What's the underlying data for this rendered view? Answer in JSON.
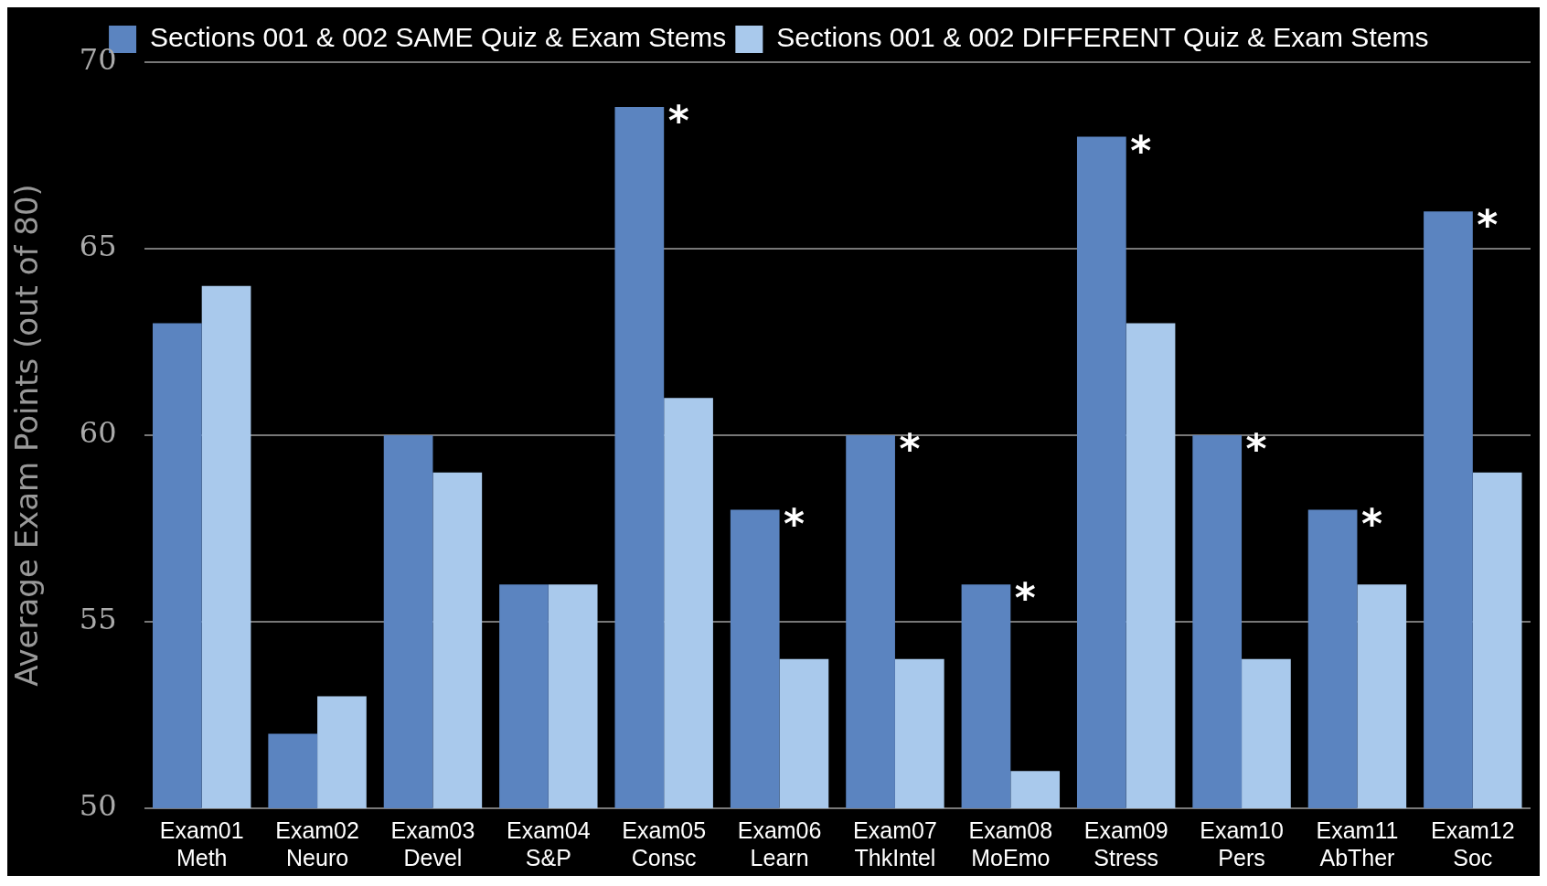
{
  "chart_data": {
    "type": "bar",
    "ylabel": "Average Exam Points (out of 80)",
    "categories": [
      "Exam01\nMeth",
      "Exam02\nNeuro",
      "Exam03\nDevel",
      "Exam04\nS&P",
      "Exam05\nConsc",
      "Exam06\nLearn",
      "Exam07\nThkIntel",
      "Exam08\nMoEmo",
      "Exam09\nStress",
      "Exam10\nPers",
      "Exam11\nAbTher",
      "Exam12\nSoc"
    ],
    "series": [
      {
        "name": "Sections 001 & 002 SAME Quiz & Exam Stems",
        "color": "#5b84c0",
        "values": [
          63,
          52,
          60,
          56,
          68.8,
          58,
          60,
          56,
          68,
          60,
          58,
          66
        ]
      },
      {
        "name": "Sections 001 & 002 DIFFERENT Quiz & Exam Stems",
        "color": "#a9c9ec",
        "values": [
          64,
          53,
          59,
          56,
          61,
          54,
          54,
          51,
          63,
          54,
          56,
          59
        ]
      }
    ],
    "ylim": [
      50,
      70
    ],
    "yticks": [
      50,
      55,
      60,
      65,
      70
    ],
    "grid": "y",
    "legend": "top",
    "annotations": [
      {
        "text": "*",
        "x": "Exam05\nConsc",
        "y": 68.8
      },
      {
        "text": "*",
        "x": "Exam06\nLearn",
        "y": 58
      },
      {
        "text": "*",
        "x": "Exam07\nThkIntel",
        "y": 60
      },
      {
        "text": "*",
        "x": "Exam08\nMoEmo",
        "y": 56
      },
      {
        "text": "*",
        "x": "Exam09\nStress",
        "y": 68
      },
      {
        "text": "*",
        "x": "Exam10\nPers",
        "y": 60
      },
      {
        "text": "*",
        "x": "Exam11\nAbTher",
        "y": 58
      },
      {
        "text": "*",
        "x": "Exam12\nSoc",
        "y": 66
      }
    ]
  }
}
